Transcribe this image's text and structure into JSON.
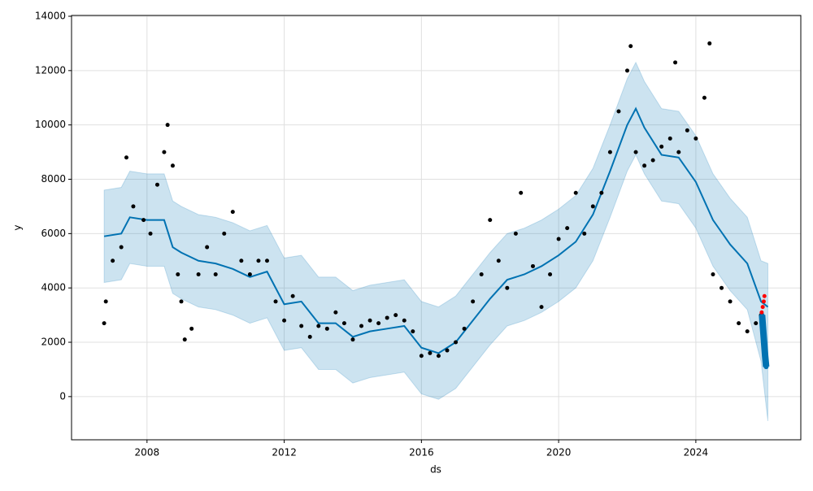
{
  "chart_data": {
    "type": "forecast",
    "x_label": "ds",
    "y_label": "y",
    "xlim": [
      2005.8,
      2027.06
    ],
    "xticks": [
      2008,
      2012,
      2016,
      2020,
      2024
    ],
    "ylim": [
      -1590,
      14030
    ],
    "yticks": [
      0,
      2000,
      4000,
      6000,
      8000,
      10000,
      12000,
      14000
    ],
    "grid": true,
    "forecast": {
      "color": "#0072B2",
      "band_color": "#0072B2",
      "x": [
        2006.75,
        2007.25,
        2007.5,
        2008.0,
        2008.5,
        2008.75,
        2009.0,
        2009.5,
        2010.0,
        2010.5,
        2011.0,
        2011.5,
        2012.0,
        2012.5,
        2013.0,
        2013.5,
        2014.0,
        2014.5,
        2015.0,
        2015.5,
        2016.0,
        2016.5,
        2017.0,
        2017.5,
        2018.0,
        2018.5,
        2019.0,
        2019.5,
        2020.0,
        2020.5,
        2021.0,
        2021.5,
        2022.0,
        2022.25,
        2022.5,
        2023.0,
        2023.5,
        2024.0,
        2024.5,
        2025.0,
        2025.5,
        2025.9,
        2026.1
      ],
      "values": [
        5900,
        6000,
        6600,
        6500,
        6500,
        5500,
        5300,
        5000,
        4900,
        4700,
        4400,
        4600,
        3400,
        3500,
        2700,
        2700,
        2200,
        2400,
        2500,
        2600,
        1800,
        1600,
        2000,
        2800,
        3600,
        4300,
        4500,
        4800,
        5200,
        5700,
        6700,
        8300,
        10000,
        10600,
        9900,
        8900,
        8800,
        7900,
        6500,
        5600,
        4900,
        3500,
        3300
      ],
      "lower": [
        4200,
        4300,
        4900,
        4800,
        4800,
        3800,
        3600,
        3300,
        3200,
        3000,
        2700,
        2900,
        1700,
        1800,
        1000,
        1000,
        500,
        700,
        800,
        900,
        100,
        -100,
        300,
        1100,
        1900,
        2600,
        2800,
        3100,
        3500,
        4000,
        5000,
        6600,
        8300,
        8900,
        8200,
        7200,
        7100,
        6200,
        4800,
        3900,
        3200,
        1300,
        -900
      ],
      "upper": [
        7600,
        7700,
        8300,
        8200,
        8200,
        7200,
        7000,
        6700,
        6600,
        6400,
        6100,
        6300,
        5100,
        5200,
        4400,
        4400,
        3900,
        4100,
        4200,
        4300,
        3500,
        3300,
        3700,
        4500,
        5300,
        6000,
        6200,
        6500,
        6900,
        7400,
        8400,
        10000,
        11700,
        12300,
        11600,
        10600,
        10500,
        9600,
        8200,
        7300,
        6600,
        5000,
        4900
      ]
    },
    "observed": {
      "color": "#000000",
      "x": [
        2006.75,
        2006.8,
        2007.0,
        2007.25,
        2007.4,
        2007.6,
        2007.9,
        2008.1,
        2008.3,
        2008.5,
        2008.6,
        2008.75,
        2008.9,
        2009.0,
        2009.1,
        2009.3,
        2009.5,
        2009.75,
        2010.0,
        2010.25,
        2010.5,
        2010.75,
        2011.0,
        2011.25,
        2011.5,
        2011.75,
        2012.0,
        2012.25,
        2012.5,
        2012.75,
        2013.0,
        2013.25,
        2013.5,
        2013.75,
        2014.0,
        2014.25,
        2014.5,
        2014.75,
        2015.0,
        2015.25,
        2015.5,
        2015.75,
        2016.0,
        2016.25,
        2016.5,
        2016.75,
        2017.0,
        2017.25,
        2017.5,
        2017.75,
        2018.0,
        2018.25,
        2018.5,
        2018.75,
        2018.9,
        2019.25,
        2019.5,
        2019.75,
        2020.0,
        2020.25,
        2020.5,
        2020.75,
        2021.0,
        2021.25,
        2021.5,
        2021.75,
        2022.0,
        2022.1,
        2022.25,
        2022.5,
        2022.75,
        2023.0,
        2023.25,
        2023.4,
        2023.5,
        2023.75,
        2024.0,
        2024.25,
        2024.4,
        2024.5,
        2024.75,
        2025.0,
        2025.25,
        2025.5,
        2025.75,
        2025.9
      ],
      "values": [
        2700,
        3500,
        5000,
        5500,
        8800,
        7000,
        6500,
        6000,
        7800,
        9000,
        10000,
        8500,
        4500,
        3500,
        2100,
        2500,
        4500,
        5500,
        4500,
        6000,
        6800,
        5000,
        4500,
        5000,
        5000,
        3500,
        2800,
        3700,
        2600,
        2200,
        2600,
        2500,
        3100,
        2700,
        2100,
        2600,
        2800,
        2700,
        2900,
        3000,
        2800,
        2400,
        1500,
        1600,
        1500,
        1700,
        2000,
        2500,
        3500,
        4500,
        6500,
        5000,
        4000,
        6000,
        7500,
        4800,
        3300,
        4500,
        5800,
        6200,
        7500,
        6000,
        7000,
        7500,
        9000,
        10500,
        12000,
        12900,
        9000,
        8500,
        8700,
        9200,
        9500,
        12300,
        9000,
        9800,
        9500,
        11000,
        13000,
        4500,
        4000,
        3500,
        2700,
        2400,
        2700,
        3000
      ]
    },
    "recent": {
      "color": "#ff0000",
      "x": [
        2025.92,
        2025.95,
        2025.98,
        2026.0
      ],
      "values": [
        3100,
        3300,
        3500,
        3700
      ]
    },
    "prediction": {
      "color": "#0072B2",
      "x": [
        2025.93,
        2025.96,
        2025.99,
        2026.02,
        2026.05
      ],
      "values": [
        3000,
        2500,
        2000,
        1500,
        1100
      ]
    }
  }
}
